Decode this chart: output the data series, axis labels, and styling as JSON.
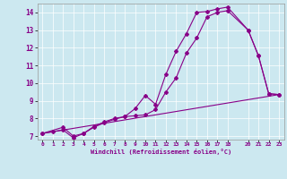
{
  "xlabel": "Windchill (Refroidissement éolien,°C)",
  "bg_color": "#cce8f0",
  "line_color": "#880088",
  "xlim": [
    -0.5,
    23.5
  ],
  "ylim": [
    6.8,
    14.5
  ],
  "xticks": [
    0,
    1,
    2,
    3,
    4,
    5,
    6,
    7,
    8,
    9,
    10,
    11,
    12,
    13,
    14,
    15,
    16,
    17,
    18,
    20,
    21,
    22,
    23
  ],
  "yticks": [
    7,
    8,
    9,
    10,
    11,
    12,
    13,
    14
  ],
  "line1_x": [
    0,
    1,
    2,
    3,
    4,
    5,
    6,
    7,
    8,
    9,
    10,
    11,
    12,
    13,
    14,
    15,
    16,
    17,
    18,
    20,
    21,
    22,
    23
  ],
  "line1_y": [
    7.15,
    7.25,
    7.35,
    6.9,
    7.15,
    7.55,
    7.8,
    8.0,
    8.1,
    8.55,
    9.3,
    8.8,
    10.5,
    11.8,
    12.8,
    14.0,
    14.05,
    14.2,
    14.3,
    13.0,
    11.55,
    9.4,
    9.35
  ],
  "line2_x": [
    0,
    2,
    3,
    4,
    5,
    6,
    7,
    8,
    9,
    10,
    11,
    12,
    13,
    14,
    15,
    16,
    17,
    18,
    20,
    21,
    22,
    23
  ],
  "line2_y": [
    7.15,
    7.5,
    7.0,
    7.15,
    7.5,
    7.75,
    7.95,
    8.1,
    8.15,
    8.2,
    8.5,
    9.5,
    10.3,
    11.7,
    12.55,
    13.75,
    14.0,
    14.1,
    13.0,
    11.55,
    9.4,
    9.35
  ],
  "line3_x": [
    0,
    23
  ],
  "line3_y": [
    7.15,
    9.35
  ]
}
